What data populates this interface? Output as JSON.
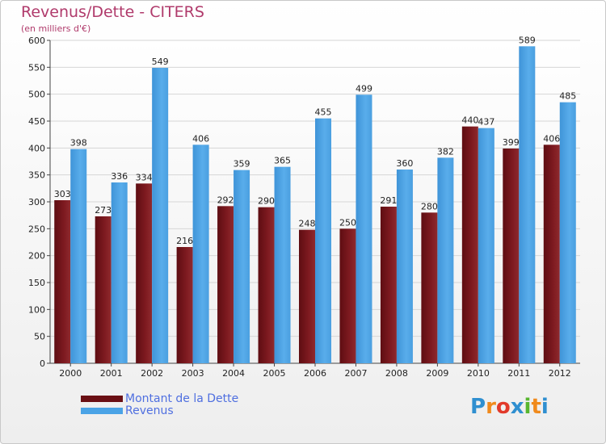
{
  "title": "Revenus/Dette - CITERS",
  "subtitle": "(en milliers d'€)",
  "chart_data": {
    "type": "bar",
    "categories": [
      "2000",
      "2001",
      "2002",
      "2003",
      "2004",
      "2005",
      "2006",
      "2007",
      "2008",
      "2009",
      "2010",
      "2011",
      "2012"
    ],
    "series": [
      {
        "name": "Montant de la Dette",
        "color": "#7a1419",
        "values": [
          303,
          273,
          334,
          216,
          292,
          290,
          248,
          250,
          291,
          280,
          440,
          399,
          406
        ]
      },
      {
        "name": "Revenus",
        "color": "#4aa3e6",
        "values": [
          398,
          336,
          549,
          406,
          359,
          365,
          455,
          499,
          360,
          382,
          437,
          589,
          485
        ]
      }
    ],
    "ylim": [
      0,
      600
    ],
    "yticks": [
      0,
      50,
      100,
      150,
      200,
      250,
      300,
      350,
      400,
      450,
      500,
      550,
      600
    ],
    "grid": true,
    "legend": "bottom-left"
  },
  "legend": {
    "debt_label": "Montant de la Dette",
    "revenue_label": "Revenus"
  },
  "logo": {
    "letters": [
      "P",
      "r",
      "o",
      "x",
      "i",
      "t",
      "i"
    ],
    "colors": [
      "#2f8fd0",
      "#f08a1c",
      "#e23a2a",
      "#2f8fd0",
      "#58b62f",
      "#f08a1c",
      "#2f8fd0"
    ]
  }
}
